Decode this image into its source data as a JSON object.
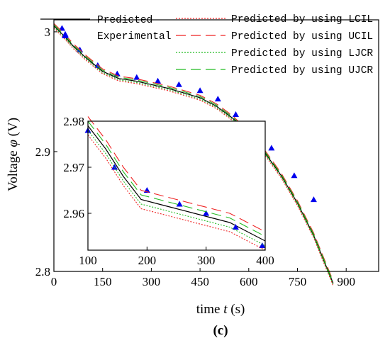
{
  "panel_label": "(c)",
  "chart_data": {
    "type": "line",
    "xlabel_prefix": "time ",
    "xlabel_symbol": "t",
    "xlabel_suffix": " (s)",
    "ylabel_prefix": "Voltage ",
    "ylabel_symbol": "φ",
    "ylabel_suffix": " (V)",
    "xlim": [
      0,
      1000
    ],
    "ylim": [
      2.8,
      3.01
    ],
    "xticks": [
      0,
      150,
      300,
      450,
      600,
      750,
      900
    ],
    "yticks": [
      2.8,
      2.9,
      3
    ],
    "xtick_labels": [
      "0",
      "150",
      "300",
      "450",
      "600",
      "750",
      "900"
    ],
    "ytick_labels": [
      "2.8",
      "2.9",
      "3"
    ],
    "grid": false,
    "legend_placement": "top",
    "series": [
      {
        "name": "Predicted",
        "style": "solid",
        "color": "#000000",
        "x": [
          0,
          30,
          60,
          100,
          150,
          200,
          250,
          300,
          350,
          400,
          450,
          500,
          550,
          600,
          650,
          700,
          750,
          800,
          830,
          860
        ],
        "y": [
          3.005,
          2.997,
          2.988,
          2.978,
          2.967,
          2.961,
          2.959,
          2.956,
          2.953,
          2.949,
          2.945,
          2.938,
          2.928,
          2.915,
          2.899,
          2.88,
          2.857,
          2.83,
          2.81,
          2.79
        ]
      },
      {
        "name": "Experimental",
        "style": "marker",
        "color": "#0000ee",
        "x": [
          25,
          35,
          80,
          135,
          195,
          255,
          320,
          385,
          450,
          505,
          560,
          600,
          670,
          740,
          800
        ],
        "y": [
          3.003,
          2.998,
          2.985,
          2.972,
          2.965,
          2.962,
          2.959,
          2.956,
          2.951,
          2.944,
          2.931,
          2.917,
          2.903,
          2.88,
          2.86
        ]
      },
      {
        "name": "Predicted by using LCIL",
        "style": "dotted",
        "color": "#ee2222",
        "x": [
          0,
          30,
          60,
          100,
          150,
          200,
          250,
          300,
          350,
          400,
          450,
          500,
          550,
          600,
          650,
          700,
          750,
          800,
          830,
          860
        ],
        "y": [
          3.003,
          2.995,
          2.986,
          2.976,
          2.965,
          2.959,
          2.957,
          2.954,
          2.951,
          2.947,
          2.943,
          2.936,
          2.926,
          2.913,
          2.897,
          2.878,
          2.855,
          2.828,
          2.808,
          2.788
        ]
      },
      {
        "name": "Predicted by using UCIL",
        "style": "longdash",
        "color": "#ee2222",
        "x": [
          0,
          30,
          60,
          100,
          150,
          200,
          250,
          300,
          350,
          400,
          450,
          500,
          550,
          600,
          650,
          700,
          750,
          800,
          830,
          860
        ],
        "y": [
          3.007,
          2.999,
          2.99,
          2.98,
          2.969,
          2.963,
          2.961,
          2.958,
          2.955,
          2.951,
          2.947,
          2.94,
          2.93,
          2.917,
          2.901,
          2.882,
          2.859,
          2.832,
          2.812,
          2.792
        ]
      },
      {
        "name": "Predicted by using LJCR",
        "style": "dotted",
        "color": "#22bb22",
        "x": [
          0,
          30,
          60,
          100,
          150,
          200,
          250,
          300,
          350,
          400,
          450,
          500,
          550,
          600,
          650,
          700,
          750,
          800,
          830,
          860
        ],
        "y": [
          3.004,
          2.996,
          2.987,
          2.977,
          2.966,
          2.96,
          2.958,
          2.955,
          2.952,
          2.948,
          2.944,
          2.937,
          2.927,
          2.914,
          2.898,
          2.879,
          2.856,
          2.829,
          2.809,
          2.789
        ]
      },
      {
        "name": "Predicted by using UJCR",
        "style": "longdash",
        "color": "#22bb22",
        "x": [
          0,
          30,
          60,
          100,
          150,
          200,
          250,
          300,
          350,
          400,
          450,
          500,
          550,
          600,
          650,
          700,
          750,
          800,
          830,
          860
        ],
        "y": [
          3.006,
          2.998,
          2.989,
          2.979,
          2.968,
          2.962,
          2.96,
          2.957,
          2.954,
          2.95,
          2.946,
          2.939,
          2.929,
          2.916,
          2.9,
          2.881,
          2.858,
          2.831,
          2.811,
          2.791
        ]
      }
    ],
    "inset": {
      "type": "line",
      "xlim": [
        100,
        400
      ],
      "ylim": [
        2.952,
        2.98
      ],
      "xticks": [
        100,
        200,
        300,
        400
      ],
      "yticks": [
        2.96,
        2.97,
        2.98
      ],
      "xtick_labels": [
        "100",
        "200",
        "300",
        "400"
      ],
      "ytick_labels": [
        "2.96",
        "2.97",
        "2.98"
      ],
      "grid": false,
      "series": [
        {
          "name": "Predicted",
          "style": "solid",
          "color": "#000000",
          "x": [
            100,
            130,
            160,
            190,
            220,
            250,
            280,
            310,
            340,
            370,
            400
          ],
          "y": [
            2.979,
            2.974,
            2.968,
            2.963,
            2.962,
            2.961,
            2.96,
            2.959,
            2.958,
            2.956,
            2.954
          ]
        },
        {
          "name": "Experimental",
          "style": "marker",
          "color": "#0000ee",
          "x": [
            100,
            145,
            200,
            255,
            300,
            350,
            395
          ],
          "y": [
            2.978,
            2.97,
            2.965,
            2.962,
            2.96,
            2.957,
            2.953
          ]
        },
        {
          "name": "Predicted by using LCIL",
          "style": "dotted",
          "color": "#ee2222",
          "x": [
            100,
            130,
            160,
            190,
            220,
            250,
            280,
            310,
            340,
            370,
            400
          ],
          "y": [
            2.977,
            2.972,
            2.966,
            2.961,
            2.96,
            2.959,
            2.958,
            2.957,
            2.956,
            2.954,
            2.952
          ]
        },
        {
          "name": "Predicted by using UCIL",
          "style": "longdash",
          "color": "#ee2222",
          "x": [
            100,
            130,
            160,
            190,
            220,
            250,
            280,
            310,
            340,
            370,
            400
          ],
          "y": [
            2.981,
            2.976,
            2.97,
            2.965,
            2.964,
            2.963,
            2.962,
            2.961,
            2.96,
            2.958,
            2.956
          ]
        },
        {
          "name": "Predicted by using LJCR",
          "style": "dotted",
          "color": "#22bb22",
          "x": [
            100,
            130,
            160,
            190,
            220,
            250,
            280,
            310,
            340,
            370,
            400
          ],
          "y": [
            2.978,
            2.973,
            2.967,
            2.962,
            2.961,
            2.96,
            2.959,
            2.958,
            2.957,
            2.955,
            2.953
          ]
        },
        {
          "name": "Predicted by using UJCR",
          "style": "longdash",
          "color": "#22bb22",
          "x": [
            100,
            130,
            160,
            190,
            220,
            250,
            280,
            310,
            340,
            370,
            400
          ],
          "y": [
            2.98,
            2.975,
            2.969,
            2.964,
            2.963,
            2.962,
            2.961,
            2.96,
            2.959,
            2.957,
            2.955
          ]
        }
      ]
    }
  }
}
